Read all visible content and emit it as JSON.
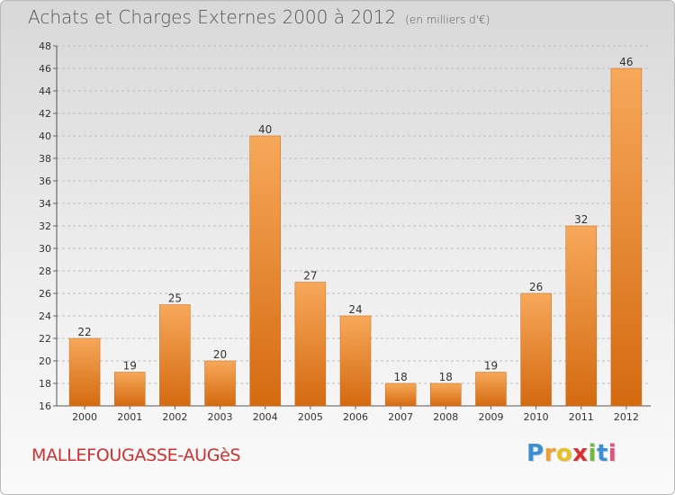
{
  "header": {
    "title": "Achats et Charges Externes 2000 à 2012",
    "unit": "(en milliers d'€)"
  },
  "footer": {
    "commune": "MALLEFOUGASSE-AUGèS",
    "logo_letters": [
      "P",
      "r",
      "o",
      "x",
      "i",
      "t",
      "i"
    ],
    "logo_colors": [
      "#3a8fd6",
      "#f0a030",
      "#e8c020",
      "#d83030",
      "#70b840",
      "#3a8fd6",
      "#e05080"
    ]
  },
  "chart_data": {
    "type": "bar",
    "title": "Achats et Charges Externes 2000 à 2012",
    "subtitle": "(en milliers d'€)",
    "categories": [
      "2000",
      "2001",
      "2002",
      "2003",
      "2004",
      "2005",
      "2006",
      "2007",
      "2008",
      "2009",
      "2010",
      "2011",
      "2012"
    ],
    "values": [
      22,
      19,
      25,
      20,
      40,
      27,
      24,
      18,
      18,
      19,
      26,
      32,
      46
    ],
    "ylim": [
      16,
      48
    ],
    "yticks": [
      16,
      18,
      20,
      22,
      24,
      26,
      28,
      30,
      32,
      34,
      36,
      38,
      40,
      42,
      44,
      46,
      48
    ],
    "grid": "horizontal-dashed",
    "bar_color_top": "#f7a85a",
    "bar_color_bottom": "#d46a10"
  }
}
